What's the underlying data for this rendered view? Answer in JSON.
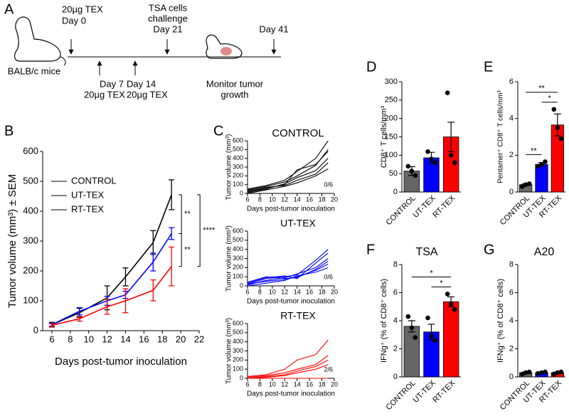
{
  "panel_labels": [
    "A",
    "B",
    "C",
    "D",
    "E",
    "F",
    "G"
  ],
  "timeline": {
    "day0": [
      "20µg TEX",
      "Day 0"
    ],
    "day7": [
      "Day 7",
      "20µg TEX"
    ],
    "day14": [
      "Day 14",
      "20µg TEX"
    ],
    "day21": [
      "TSA cells",
      "challenge",
      "Day 21"
    ],
    "day41": "Day 41",
    "mice": "BALB/c mice",
    "monitor": [
      "Monitor tumor",
      "growth"
    ]
  },
  "chart_data": [
    {
      "type": "line",
      "x": [
        6,
        9,
        12,
        14,
        17,
        19
      ],
      "xlim": [
        5,
        22
      ],
      "xticks": [
        6,
        8,
        10,
        12,
        14,
        16,
        18,
        20,
        22
      ],
      "ylim": [
        0,
        600
      ],
      "yticks": [
        0,
        100,
        200,
        300,
        400,
        500,
        600
      ],
      "ylabel": "Tumor volume (mm³) ± SEM",
      "xlabel": "Days post-tumor inoculation",
      "legend": "upper left",
      "series": [
        {
          "name": "CONTROL",
          "color": "#000000",
          "values": [
            20,
            60,
            110,
            180,
            295,
            455
          ],
          "errors": [
            8,
            15,
            40,
            30,
            40,
            50
          ]
        },
        {
          "name": "UT-TEX",
          "color": "#0000ff",
          "values": [
            20,
            65,
            100,
            120,
            230,
            325
          ],
          "errors": [
            5,
            12,
            15,
            12,
            30,
            20
          ]
        },
        {
          "name": "RT-TEX",
          "color": "#ff0000",
          "values": [
            18,
            40,
            80,
            100,
            135,
            215
          ],
          "errors": [
            5,
            8,
            25,
            40,
            35,
            65
          ]
        }
      ],
      "annotations": [
        {
          "text": "**",
          "between": [
            0,
            1
          ]
        },
        {
          "text": "**",
          "between": [
            1,
            2
          ]
        },
        {
          "text": "****",
          "between": [
            0,
            2
          ]
        }
      ]
    },
    {
      "type": "line",
      "title": "CONTROL",
      "annotation": "0/6",
      "color": "#000000",
      "x": [
        6,
        9,
        12,
        14,
        17,
        19
      ],
      "xlim": [
        6,
        20
      ],
      "xticks": [
        6,
        8,
        10,
        12,
        14,
        16,
        18,
        20
      ],
      "ylim": [
        0,
        600
      ],
      "yticks": [
        0,
        100,
        200,
        300,
        400,
        500,
        600
      ],
      "ylabel": "Tumor volume (mm³)",
      "xlabel": "Days post-tumor inoculation",
      "series": [
        {
          "values": [
            50,
            90,
            150,
            250,
            400,
            600
          ]
        },
        {
          "values": [
            40,
            80,
            130,
            200,
            320,
            500
          ]
        },
        {
          "values": [
            20,
            60,
            100,
            270,
            330,
            480
          ]
        },
        {
          "values": [
            10,
            50,
            110,
            180,
            260,
            400
          ]
        },
        {
          "values": [
            30,
            70,
            90,
            150,
            220,
            350
          ]
        },
        {
          "values": [
            0,
            40,
            80,
            120,
            200,
            280
          ]
        }
      ]
    },
    {
      "type": "line",
      "title": "UT-TEX",
      "annotation": "0/6",
      "color": "#0000ff",
      "x": [
        6,
        9,
        12,
        14,
        17,
        19
      ],
      "xlim": [
        6,
        20
      ],
      "xticks": [
        6,
        8,
        10,
        12,
        14,
        16,
        18,
        20
      ],
      "ylim": [
        0,
        600
      ],
      "yticks": [
        0,
        100,
        200,
        300,
        400,
        500,
        600
      ],
      "ylabel": "Tumor volume (mm³)",
      "xlabel": "Days post-tumor inoculation",
      "series": [
        {
          "values": [
            20,
            80,
            100,
            120,
            280,
            400
          ]
        },
        {
          "values": [
            30,
            90,
            110,
            80,
            250,
            360
          ]
        },
        {
          "values": [
            10,
            60,
            90,
            130,
            200,
            300
          ]
        },
        {
          "values": [
            40,
            100,
            80,
            90,
            180,
            270
          ]
        },
        {
          "values": [
            20,
            50,
            70,
            100,
            170,
            240
          ]
        },
        {
          "values": [
            0,
            30,
            60,
            110,
            150,
            200
          ]
        }
      ]
    },
    {
      "type": "line",
      "title": "RT-TEX",
      "annotation": "2/6",
      "color": "#ff0000",
      "x": [
        6,
        9,
        12,
        14,
        17,
        19
      ],
      "xlim": [
        6,
        20
      ],
      "xticks": [
        6,
        8,
        10,
        12,
        14,
        16,
        18,
        20
      ],
      "ylim": [
        0,
        600
      ],
      "yticks": [
        0,
        100,
        200,
        300,
        400,
        500,
        600
      ],
      "ylabel": "Tumor volume (mm³)",
      "xlabel": "Days post-tumor inoculation",
      "series": [
        {
          "values": [
            20,
            40,
            100,
            200,
            260,
            420
          ]
        },
        {
          "values": [
            10,
            30,
            60,
            100,
            150,
            250
          ]
        },
        {
          "values": [
            0,
            20,
            40,
            80,
            130,
            200
          ]
        },
        {
          "values": [
            0,
            10,
            30,
            60,
            100,
            150
          ]
        },
        {
          "values": [
            0,
            0,
            0,
            0,
            0,
            0
          ]
        },
        {
          "values": [
            0,
            0,
            0,
            0,
            0,
            0
          ]
        }
      ]
    },
    {
      "type": "bar",
      "categories": [
        "CONTROL",
        "UT-TEX",
        "RT-TEX"
      ],
      "colors": [
        "#666666",
        "#0000ff",
        "#ff0000"
      ],
      "values": [
        57,
        93,
        150
      ],
      "errors": [
        12,
        15,
        40
      ],
      "points": [
        [
          70,
          57,
          45
        ],
        [
          110,
          90,
          80
        ],
        [
          270,
          100,
          80
        ]
      ],
      "ylim": [
        0,
        300
      ],
      "yticks": [
        0,
        50,
        100,
        150,
        200,
        250,
        300
      ],
      "ylabel": "CD8⁺ T cells/mm³",
      "annotations": []
    },
    {
      "type": "bar",
      "categories": [
        "CONTROL",
        "UT-TEX",
        "RT-TEX"
      ],
      "colors": [
        "#666666",
        "#0000ff",
        "#ff0000"
      ],
      "values": [
        0.4,
        1.5,
        3.65
      ],
      "errors": [
        0.05,
        0.1,
        0.6
      ],
      "points": [
        [
          0.3,
          0.4,
          0.45
        ],
        [
          1.4,
          1.5,
          1.65
        ],
        [
          4.5,
          3.5,
          2.9
        ]
      ],
      "ylim": [
        0,
        6
      ],
      "yticks": [
        0,
        2,
        4,
        6
      ],
      "ylabel": "Pentamer⁺ CD8⁺ T cells/mm³",
      "annotations": [
        {
          "text": "**",
          "between": [
            0,
            2
          ]
        },
        {
          "text": "*",
          "between": [
            1,
            2
          ]
        },
        {
          "text": "**",
          "between": [
            0,
            1
          ]
        }
      ]
    },
    {
      "type": "bar",
      "title": "TSA",
      "categories": [
        "CONTROL",
        "UT-TEX",
        "RT-TEX"
      ],
      "colors": [
        "#666666",
        "#0000ff",
        "#ff0000"
      ],
      "values": [
        3.6,
        3.2,
        5.35
      ],
      "errors": [
        0.4,
        0.55,
        0.35
      ],
      "points": [
        [
          4.3,
          3.5,
          2.8
        ],
        [
          4.2,
          2.9,
          2.6
        ],
        [
          5.9,
          5.2,
          4.8
        ]
      ],
      "ylim": [
        0,
        8
      ],
      "yticks": [
        0,
        2,
        4,
        6,
        8
      ],
      "ylabel": "IFNg⁺ (% of CD8⁺ cells)",
      "annotations": [
        {
          "text": "*",
          "between": [
            0,
            2
          ]
        },
        {
          "text": "*",
          "between": [
            1,
            2
          ]
        }
      ]
    },
    {
      "type": "bar",
      "title": "A20",
      "categories": [
        "CONTROL",
        "UT-TEX",
        "RT-TEX"
      ],
      "colors": [
        "#666666",
        "#0000ff",
        "#ff0000"
      ],
      "values": [
        0.3,
        0.3,
        0.3
      ],
      "errors": [
        0.05,
        0.05,
        0.05
      ],
      "points": [
        [
          0.2,
          0.3,
          0.35
        ],
        [
          0.25,
          0.3,
          0.35
        ],
        [
          0.2,
          0.3,
          0.35
        ]
      ],
      "ylim": [
        0,
        8
      ],
      "yticks": [
        0,
        2,
        4,
        6,
        8
      ],
      "ylabel": "IFNg⁺ (% of CD8⁺ cells)",
      "annotations": []
    }
  ]
}
